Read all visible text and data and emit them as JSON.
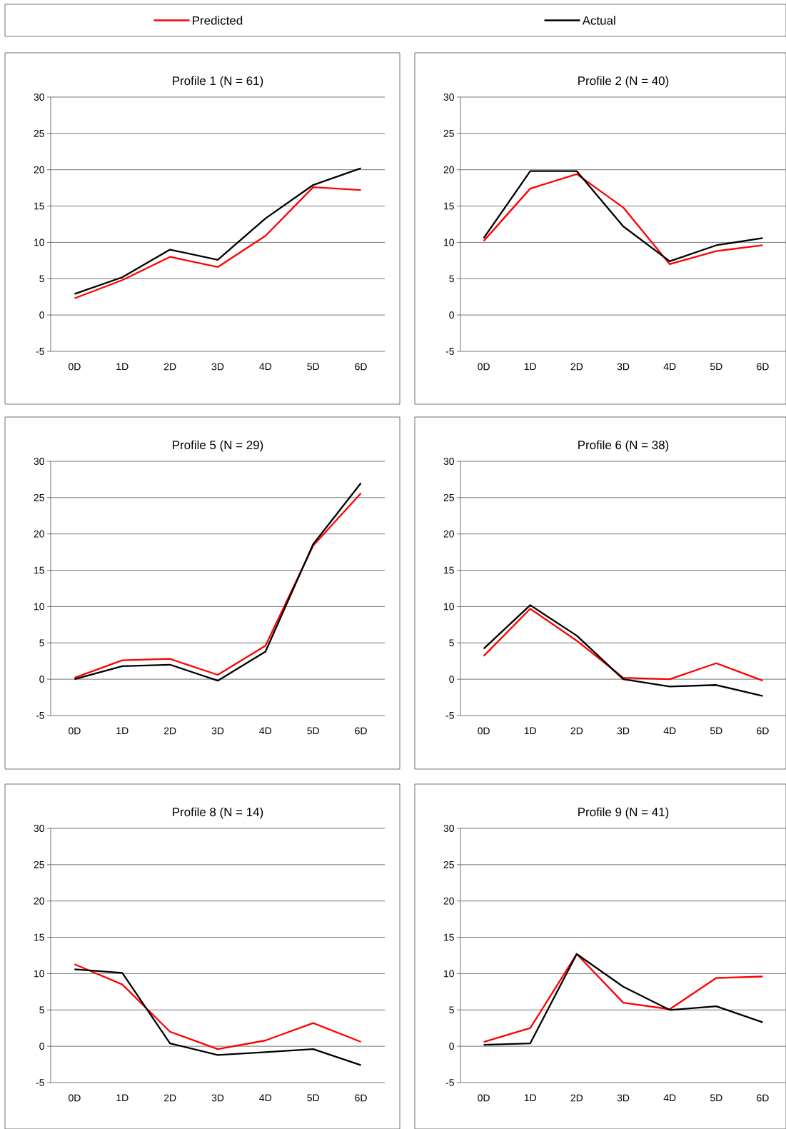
{
  "chart_data": [
    {
      "type": "line",
      "title": "Profile 1 (N = 61)",
      "categories": [
        "0D",
        "1D",
        "2D",
        "3D",
        "4D",
        "5D",
        "6D"
      ],
      "legend": "top",
      "grid": "y",
      "ylim": [
        -5,
        30
      ],
      "yticks": [
        -5,
        0,
        5,
        10,
        15,
        20,
        25,
        30
      ],
      "series": [
        {
          "name": "Predicted",
          "color": "#ff0000",
          "values": [
            2.3,
            4.8,
            8.0,
            6.6,
            10.9,
            17.6,
            17.2
          ]
        },
        {
          "name": "Actual",
          "color": "#000000",
          "values": [
            2.9,
            5.2,
            9.0,
            7.6,
            13.3,
            17.9,
            20.2
          ]
        }
      ]
    },
    {
      "type": "line",
      "title": "Profile 2 (N = 40)",
      "categories": [
        "0D",
        "1D",
        "2D",
        "3D",
        "4D",
        "5D",
        "6D"
      ],
      "grid": "y",
      "ylim": [
        -5,
        30
      ],
      "yticks": [
        -5,
        0,
        5,
        10,
        15,
        20,
        25,
        30
      ],
      "series": [
        {
          "color": "#ff0000",
          "values": [
            10.2,
            17.4,
            19.4,
            14.8,
            7.0,
            8.8,
            9.6
          ]
        },
        {
          "color": "#000000",
          "values": [
            10.6,
            19.8,
            19.8,
            12.2,
            7.4,
            9.6,
            10.6
          ]
        }
      ]
    },
    {
      "type": "line",
      "title": "Profile 5 (N = 29)",
      "categories": [
        "0D",
        "1D",
        "2D",
        "3D",
        "4D",
        "5D",
        "6D"
      ],
      "grid": "y",
      "ylim": [
        -5,
        30
      ],
      "yticks": [
        -5,
        0,
        5,
        10,
        15,
        20,
        25,
        30
      ],
      "series": [
        {
          "color": "#ff0000",
          "values": [
            0.2,
            2.6,
            2.8,
            0.6,
            4.6,
            18.4,
            25.6
          ]
        },
        {
          "color": "#000000",
          "values": [
            0.0,
            1.8,
            2.0,
            -0.2,
            3.8,
            18.6,
            27.0
          ]
        }
      ]
    },
    {
      "type": "line",
      "title": "Profile 6 (N = 38)",
      "categories": [
        "0D",
        "1D",
        "2D",
        "3D",
        "4D",
        "5D",
        "6D"
      ],
      "grid": "y",
      "ylim": [
        -5,
        30
      ],
      "yticks": [
        -5,
        0,
        5,
        10,
        15,
        20,
        25,
        30
      ],
      "series": [
        {
          "color": "#ff0000",
          "values": [
            3.2,
            9.7,
            5.3,
            0.2,
            0.0,
            2.2,
            -0.2
          ]
        },
        {
          "color": "#000000",
          "values": [
            4.2,
            10.2,
            6.0,
            0.0,
            -1.0,
            -0.8,
            -2.3
          ]
        }
      ]
    },
    {
      "type": "line",
      "title": "Profile 8 (N = 14)",
      "categories": [
        "0D",
        "1D",
        "2D",
        "3D",
        "4D",
        "5D",
        "6D"
      ],
      "grid": "y",
      "ylim": [
        -5,
        30
      ],
      "yticks": [
        -5,
        0,
        5,
        10,
        15,
        20,
        25,
        30
      ],
      "series": [
        {
          "color": "#ff0000",
          "values": [
            11.3,
            8.5,
            2.0,
            -0.4,
            0.8,
            3.2,
            0.6
          ]
        },
        {
          "color": "#000000",
          "values": [
            10.6,
            10.1,
            0.4,
            -1.2,
            -0.8,
            -0.4,
            -2.6
          ]
        }
      ]
    },
    {
      "type": "line",
      "title": "Profile 9 (N = 41)",
      "categories": [
        "0D",
        "1D",
        "2D",
        "3D",
        "4D",
        "5D",
        "6D"
      ],
      "grid": "y",
      "ylim": [
        -5,
        30
      ],
      "yticks": [
        -5,
        0,
        5,
        10,
        15,
        20,
        25,
        30
      ],
      "series": [
        {
          "color": "#ff0000",
          "values": [
            0.6,
            2.5,
            12.7,
            6.0,
            5.1,
            9.4,
            9.6
          ]
        },
        {
          "color": "#000000",
          "values": [
            0.2,
            0.4,
            12.7,
            8.2,
            5.0,
            5.5,
            3.3
          ]
        }
      ]
    }
  ]
}
